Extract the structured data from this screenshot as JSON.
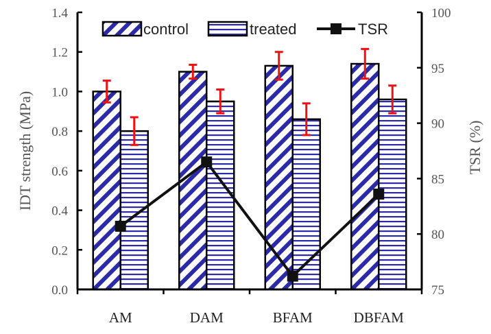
{
  "chart_data": {
    "type": "bar",
    "categories": [
      "AM",
      "DAM",
      "BFAM",
      "DBFAM"
    ],
    "series": [
      {
        "name": "control",
        "values": [
          1.0,
          1.1,
          1.13,
          1.14
        ],
        "errors": [
          0.055,
          0.035,
          0.07,
          0.075
        ],
        "pattern": "diagonal-hatch"
      },
      {
        "name": "treated",
        "values": [
          0.8,
          0.95,
          0.86,
          0.96
        ],
        "errors": [
          0.07,
          0.06,
          0.08,
          0.07
        ],
        "pattern": "horizontal-hatch"
      }
    ],
    "line_series": {
      "name": "TSR",
      "axis": "right",
      "values": [
        80.7,
        86.5,
        76.2,
        83.6
      ]
    },
    "ylabel": "IDT strength (MPa)",
    "ylim": [
      0,
      1.4
    ],
    "yticks": [
      "0.0",
      "0.2",
      "0.4",
      "0.6",
      "0.8",
      "1.0",
      "1.2",
      "1.4"
    ],
    "y2label": "TSR (%)",
    "y2lim": [
      75,
      100
    ],
    "y2ticks": [
      "75",
      "80",
      "85",
      "90",
      "95",
      "100"
    ],
    "legend_position": "top",
    "grid": false,
    "colors": {
      "bar_hatch": "#2b2ba8",
      "error_bar": "#ee1111",
      "line": "#111111"
    }
  }
}
